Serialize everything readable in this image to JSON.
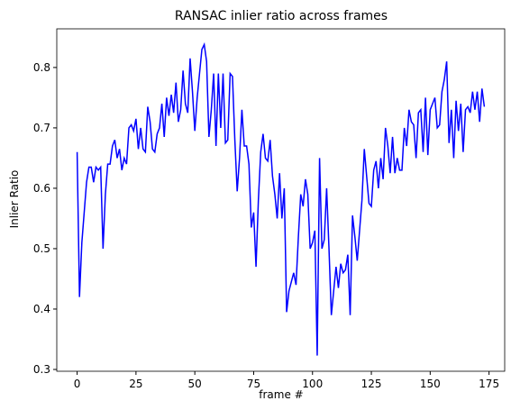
{
  "chart_data": {
    "type": "line",
    "title": "RANSAC inlier ratio across frames",
    "xlabel": "frame #",
    "ylabel": "Inlier Ratio",
    "x": [
      0,
      1,
      2,
      3,
      4,
      5,
      6,
      7,
      8,
      9,
      10,
      11,
      12,
      13,
      14,
      15,
      16,
      17,
      18,
      19,
      20,
      21,
      22,
      23,
      24,
      25,
      26,
      27,
      28,
      29,
      30,
      31,
      32,
      33,
      34,
      35,
      36,
      37,
      38,
      39,
      40,
      41,
      42,
      43,
      44,
      45,
      46,
      47,
      48,
      49,
      50,
      51,
      52,
      53,
      54,
      55,
      56,
      57,
      58,
      59,
      60,
      61,
      62,
      63,
      64,
      65,
      66,
      67,
      68,
      69,
      70,
      71,
      72,
      73,
      74,
      75,
      76,
      77,
      78,
      79,
      80,
      81,
      82,
      83,
      84,
      85,
      86,
      87,
      88,
      89,
      90,
      91,
      92,
      93,
      94,
      95,
      96,
      97,
      98,
      99,
      100,
      101,
      102,
      103,
      104,
      105,
      106,
      107,
      108,
      109,
      110,
      111,
      112,
      113,
      114,
      115,
      116,
      117,
      118,
      119,
      120,
      121,
      122,
      123,
      124,
      125,
      126,
      127,
      128,
      129,
      130,
      131,
      132,
      133,
      134,
      135,
      136,
      137,
      138,
      139,
      140,
      141,
      142,
      143,
      144,
      145,
      146,
      147,
      148,
      149,
      150,
      151,
      152,
      153,
      154,
      155,
      156,
      157,
      158,
      159,
      160,
      161,
      162,
      163,
      164,
      165,
      166,
      167,
      168,
      169,
      170,
      171,
      172,
      173
    ],
    "series": [
      {
        "name": "Inlier Ratio",
        "color": "#0000ff",
        "values": [
          0.66,
          0.42,
          0.51,
          0.56,
          0.61,
          0.635,
          0.635,
          0.61,
          0.635,
          0.63,
          0.635,
          0.5,
          0.59,
          0.64,
          0.64,
          0.67,
          0.68,
          0.65,
          0.665,
          0.63,
          0.65,
          0.64,
          0.7,
          0.705,
          0.695,
          0.715,
          0.665,
          0.7,
          0.665,
          0.66,
          0.735,
          0.71,
          0.665,
          0.66,
          0.69,
          0.7,
          0.74,
          0.685,
          0.75,
          0.72,
          0.755,
          0.725,
          0.775,
          0.71,
          0.73,
          0.795,
          0.74,
          0.725,
          0.815,
          0.76,
          0.695,
          0.75,
          0.79,
          0.83,
          0.838,
          0.81,
          0.685,
          0.73,
          0.79,
          0.67,
          0.79,
          0.7,
          0.79,
          0.675,
          0.68,
          0.79,
          0.785,
          0.68,
          0.595,
          0.65,
          0.73,
          0.67,
          0.67,
          0.64,
          0.535,
          0.56,
          0.47,
          0.58,
          0.66,
          0.69,
          0.65,
          0.645,
          0.68,
          0.62,
          0.59,
          0.55,
          0.625,
          0.55,
          0.6,
          0.395,
          0.43,
          0.445,
          0.46,
          0.44,
          0.52,
          0.59,
          0.57,
          0.615,
          0.59,
          0.5,
          0.51,
          0.53,
          0.323,
          0.65,
          0.5,
          0.515,
          0.6,
          0.5,
          0.39,
          0.43,
          0.47,
          0.435,
          0.475,
          0.46,
          0.465,
          0.49,
          0.39,
          0.555,
          0.52,
          0.48,
          0.53,
          0.58,
          0.665,
          0.62,
          0.575,
          0.57,
          0.63,
          0.645,
          0.6,
          0.65,
          0.615,
          0.7,
          0.67,
          0.625,
          0.685,
          0.625,
          0.65,
          0.63,
          0.63,
          0.7,
          0.67,
          0.73,
          0.71,
          0.705,
          0.65,
          0.725,
          0.73,
          0.66,
          0.75,
          0.655,
          0.73,
          0.74,
          0.75,
          0.7,
          0.705,
          0.76,
          0.78,
          0.81,
          0.675,
          0.73,
          0.65,
          0.745,
          0.695,
          0.74,
          0.66,
          0.73,
          0.735,
          0.725,
          0.76,
          0.73,
          0.76,
          0.71,
          0.765,
          0.735
        ]
      }
    ],
    "xlim": [
      -8.65,
      181.65
    ],
    "xticks": [
      0,
      25,
      50,
      75,
      100,
      125,
      150,
      175
    ],
    "ylim": [
      0.297,
      0.864
    ],
    "yticks": [
      0.3,
      0.4,
      0.5,
      0.6,
      0.7,
      0.8
    ]
  }
}
